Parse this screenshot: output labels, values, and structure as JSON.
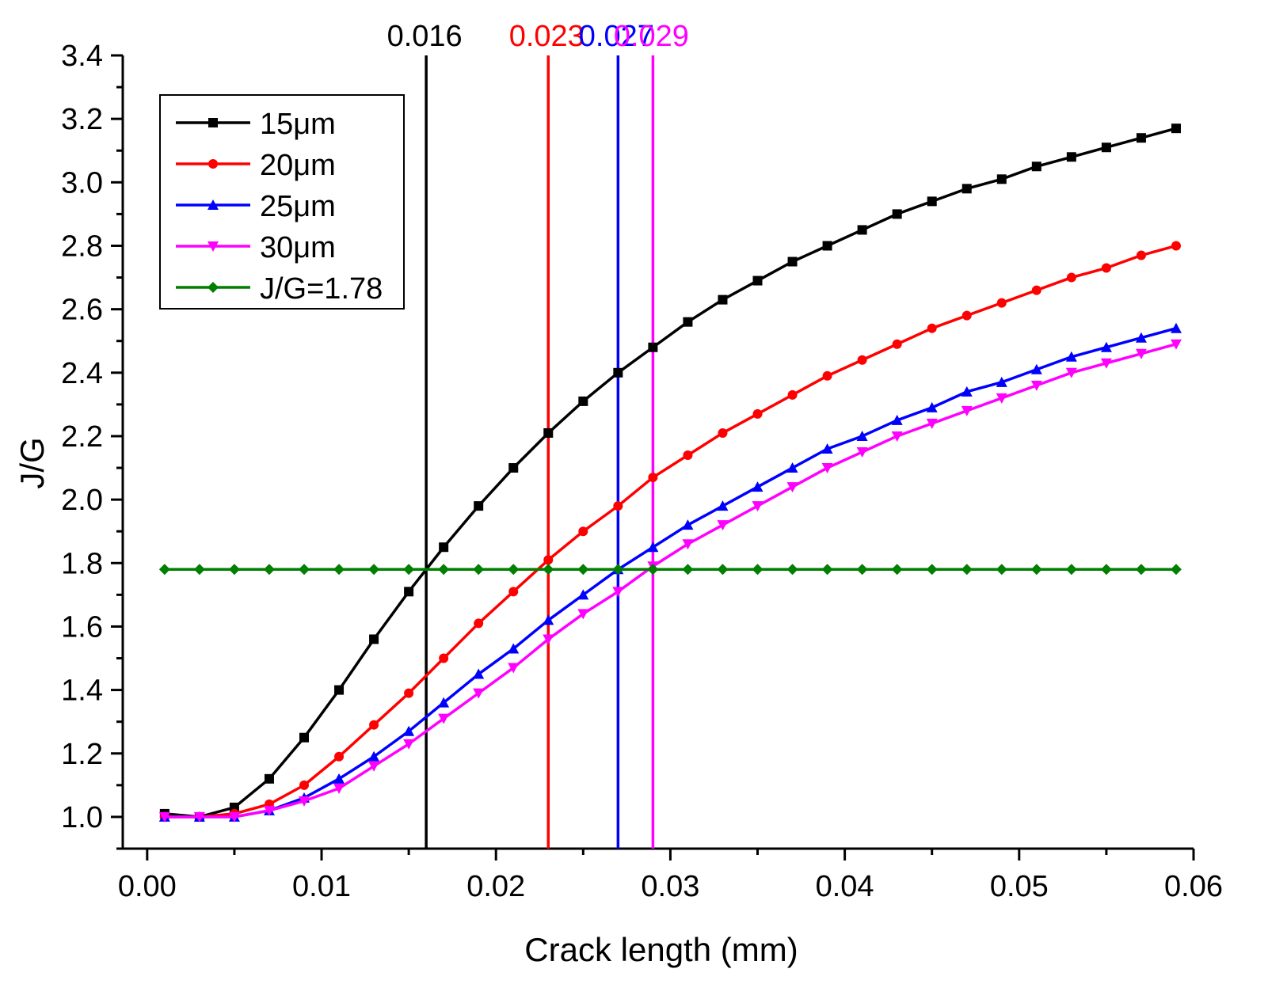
{
  "chart_data": {
    "type": "line",
    "title": "",
    "xlabel": "Crack length (mm)",
    "ylabel": "J/G",
    "xlim": [
      -0.0014,
      0.06
    ],
    "ylim": [
      0.9,
      3.4
    ],
    "x_ticks": [
      0.0,
      0.01,
      0.02,
      0.03,
      0.04,
      0.05,
      0.06
    ],
    "x_tick_labels": [
      "0.00",
      "0.01",
      "0.02",
      "0.03",
      "0.04",
      "0.05",
      "0.06"
    ],
    "y_ticks": [
      1.0,
      1.2,
      1.4,
      1.6,
      1.8,
      2.0,
      2.2,
      2.4,
      2.6,
      2.8,
      3.0,
      3.2,
      3.4
    ],
    "y_tick_labels": [
      "1.0",
      "1.2",
      "1.4",
      "1.6",
      "1.8",
      "2.0",
      "2.2",
      "2.4",
      "2.6",
      "2.8",
      "3.0",
      "3.2",
      "3.4"
    ],
    "grid": false,
    "legend_position": "top-left",
    "x": [
      0.001,
      0.003,
      0.005,
      0.007,
      0.009,
      0.011,
      0.013,
      0.015,
      0.017,
      0.019,
      0.021,
      0.023,
      0.025,
      0.027,
      0.029,
      0.031,
      0.033,
      0.035,
      0.037,
      0.039,
      0.041,
      0.043,
      0.045,
      0.047,
      0.049,
      0.051,
      0.053,
      0.055,
      0.057,
      0.059
    ],
    "series": [
      {
        "name": "15μm",
        "color": "#000000",
        "marker": "square",
        "values": [
          1.01,
          1.0,
          1.03,
          1.12,
          1.25,
          1.4,
          1.56,
          1.71,
          1.85,
          1.98,
          2.1,
          2.21,
          2.31,
          2.4,
          2.48,
          2.56,
          2.63,
          2.69,
          2.75,
          2.8,
          2.85,
          2.9,
          2.94,
          2.98,
          3.01,
          3.05,
          3.08,
          3.11,
          3.14,
          3.17
        ]
      },
      {
        "name": "20μm",
        "color": "#ff0000",
        "marker": "circle",
        "values": [
          1.0,
          1.0,
          1.01,
          1.04,
          1.1,
          1.19,
          1.29,
          1.39,
          1.5,
          1.61,
          1.71,
          1.81,
          1.9,
          1.98,
          2.07,
          2.14,
          2.21,
          2.27,
          2.33,
          2.39,
          2.44,
          2.49,
          2.54,
          2.58,
          2.62,
          2.66,
          2.7,
          2.73,
          2.77,
          2.8
        ]
      },
      {
        "name": "25μm",
        "color": "#0000ff",
        "marker": "triangle-up",
        "values": [
          1.0,
          1.0,
          1.0,
          1.02,
          1.06,
          1.12,
          1.19,
          1.27,
          1.36,
          1.45,
          1.53,
          1.62,
          1.7,
          1.78,
          1.85,
          1.92,
          1.98,
          2.04,
          2.1,
          2.16,
          2.2,
          2.25,
          2.29,
          2.34,
          2.37,
          2.41,
          2.45,
          2.48,
          2.51,
          2.54
        ]
      },
      {
        "name": "30μm",
        "color": "#ff00ff",
        "marker": "triangle-down",
        "values": [
          1.0,
          1.0,
          1.0,
          1.02,
          1.05,
          1.09,
          1.16,
          1.23,
          1.31,
          1.39,
          1.47,
          1.56,
          1.64,
          1.71,
          1.79,
          1.86,
          1.92,
          1.98,
          2.04,
          2.1,
          2.15,
          2.2,
          2.24,
          2.28,
          2.32,
          2.36,
          2.4,
          2.43,
          2.46,
          2.49
        ]
      },
      {
        "name": "J/G=1.78",
        "color": "#007f00",
        "marker": "diamond",
        "values": [
          1.78,
          1.78,
          1.78,
          1.78,
          1.78,
          1.78,
          1.78,
          1.78,
          1.78,
          1.78,
          1.78,
          1.78,
          1.78,
          1.78,
          1.78,
          1.78,
          1.78,
          1.78,
          1.78,
          1.78,
          1.78,
          1.78,
          1.78,
          1.78,
          1.78,
          1.78,
          1.78,
          1.78,
          1.78,
          1.78
        ]
      }
    ],
    "vertical_lines": [
      {
        "x": 0.016,
        "label": "0.016",
        "color": "#000000"
      },
      {
        "x": 0.023,
        "label": "0.023",
        "color": "#ff0000"
      },
      {
        "x": 0.027,
        "label": "0.027",
        "color": "#0000ff"
      },
      {
        "x": 0.029,
        "label": "0.029",
        "color": "#ff00ff"
      }
    ]
  }
}
